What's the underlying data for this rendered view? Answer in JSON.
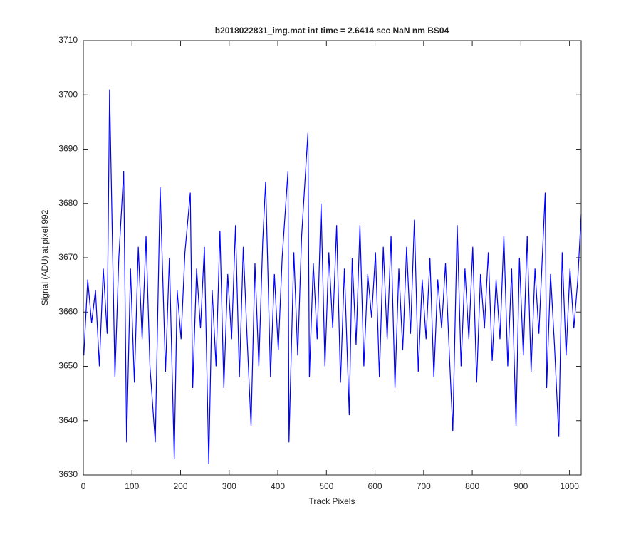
{
  "chart_data": {
    "type": "line",
    "title": "b2018022831_img.mat int time = 2.6414 sec  NaN nm BS04",
    "x_label": "Track Pixels",
    "y_label": "Signal (ADU) at pixel 992",
    "x": [
      1,
      9,
      17,
      25,
      33,
      41,
      49,
      54,
      65,
      73,
      83,
      89,
      97,
      105,
      113,
      121,
      129,
      137,
      148,
      158,
      169,
      177,
      187,
      193,
      201,
      209,
      220,
      225,
      233,
      241,
      249,
      258,
      265,
      273,
      281,
      289,
      297,
      305,
      313,
      321,
      329,
      337,
      345,
      353,
      361,
      369,
      375,
      385,
      393,
      401,
      409,
      421,
      423,
      433,
      441,
      449,
      462,
      465,
      473,
      481,
      489,
      497,
      505,
      513,
      521,
      529,
      537,
      547,
      553,
      561,
      569,
      577,
      585,
      593,
      601,
      609,
      617,
      625,
      633,
      641,
      649,
      657,
      665,
      673,
      681,
      689,
      697,
      705,
      713,
      721,
      729,
      737,
      745,
      753,
      760,
      769,
      777,
      785,
      793,
      801,
      809,
      817,
      825,
      833,
      841,
      849,
      857,
      865,
      873,
      881,
      890,
      897,
      905,
      913,
      921,
      929,
      937,
      950,
      953,
      961,
      969,
      978,
      985,
      993,
      1001,
      1009,
      1017,
      1024
    ],
    "series": [
      {
        "name": "signal",
        "color": "#0000ff",
        "values": [
          3652,
          3666,
          3658,
          3664,
          3650,
          3668,
          3656,
          3701,
          3648,
          3670,
          3686,
          3636,
          3668,
          3647,
          3672,
          3655,
          3674,
          3650,
          3636,
          3683,
          3649,
          3670,
          3633,
          3664,
          3655,
          3671,
          3682,
          3646,
          3668,
          3657,
          3672,
          3632,
          3664,
          3650,
          3675,
          3646,
          3667,
          3655,
          3676,
          3648,
          3672,
          3655,
          3639,
          3669,
          3650,
          3673,
          3684,
          3648,
          3667,
          3653,
          3670,
          3686,
          3636,
          3671,
          3652,
          3674,
          3693,
          3648,
          3669,
          3655,
          3680,
          3650,
          3671,
          3657,
          3676,
          3647,
          3668,
          3641,
          3670,
          3654,
          3676,
          3650,
          3667,
          3659,
          3671,
          3648,
          3672,
          3655,
          3674,
          3646,
          3668,
          3653,
          3672,
          3656,
          3677,
          3649,
          3666,
          3655,
          3670,
          3648,
          3666,
          3657,
          3669,
          3652,
          3638,
          3676,
          3650,
          3668,
          3655,
          3672,
          3647,
          3667,
          3657,
          3671,
          3651,
          3666,
          3655,
          3674,
          3650,
          3668,
          3639,
          3670,
          3652,
          3674,
          3649,
          3668,
          3656,
          3682,
          3646,
          3667,
          3654,
          3637,
          3671,
          3652,
          3668,
          3657,
          3666,
          3678
        ]
      }
    ],
    "xlim": [
      0,
      1024
    ],
    "ylim": [
      3630,
      3710
    ],
    "xticks": [
      0,
      100,
      200,
      300,
      400,
      500,
      600,
      700,
      800,
      900,
      1000
    ],
    "yticks": [
      3630,
      3640,
      3650,
      3660,
      3670,
      3680,
      3690,
      3700,
      3710
    ]
  }
}
